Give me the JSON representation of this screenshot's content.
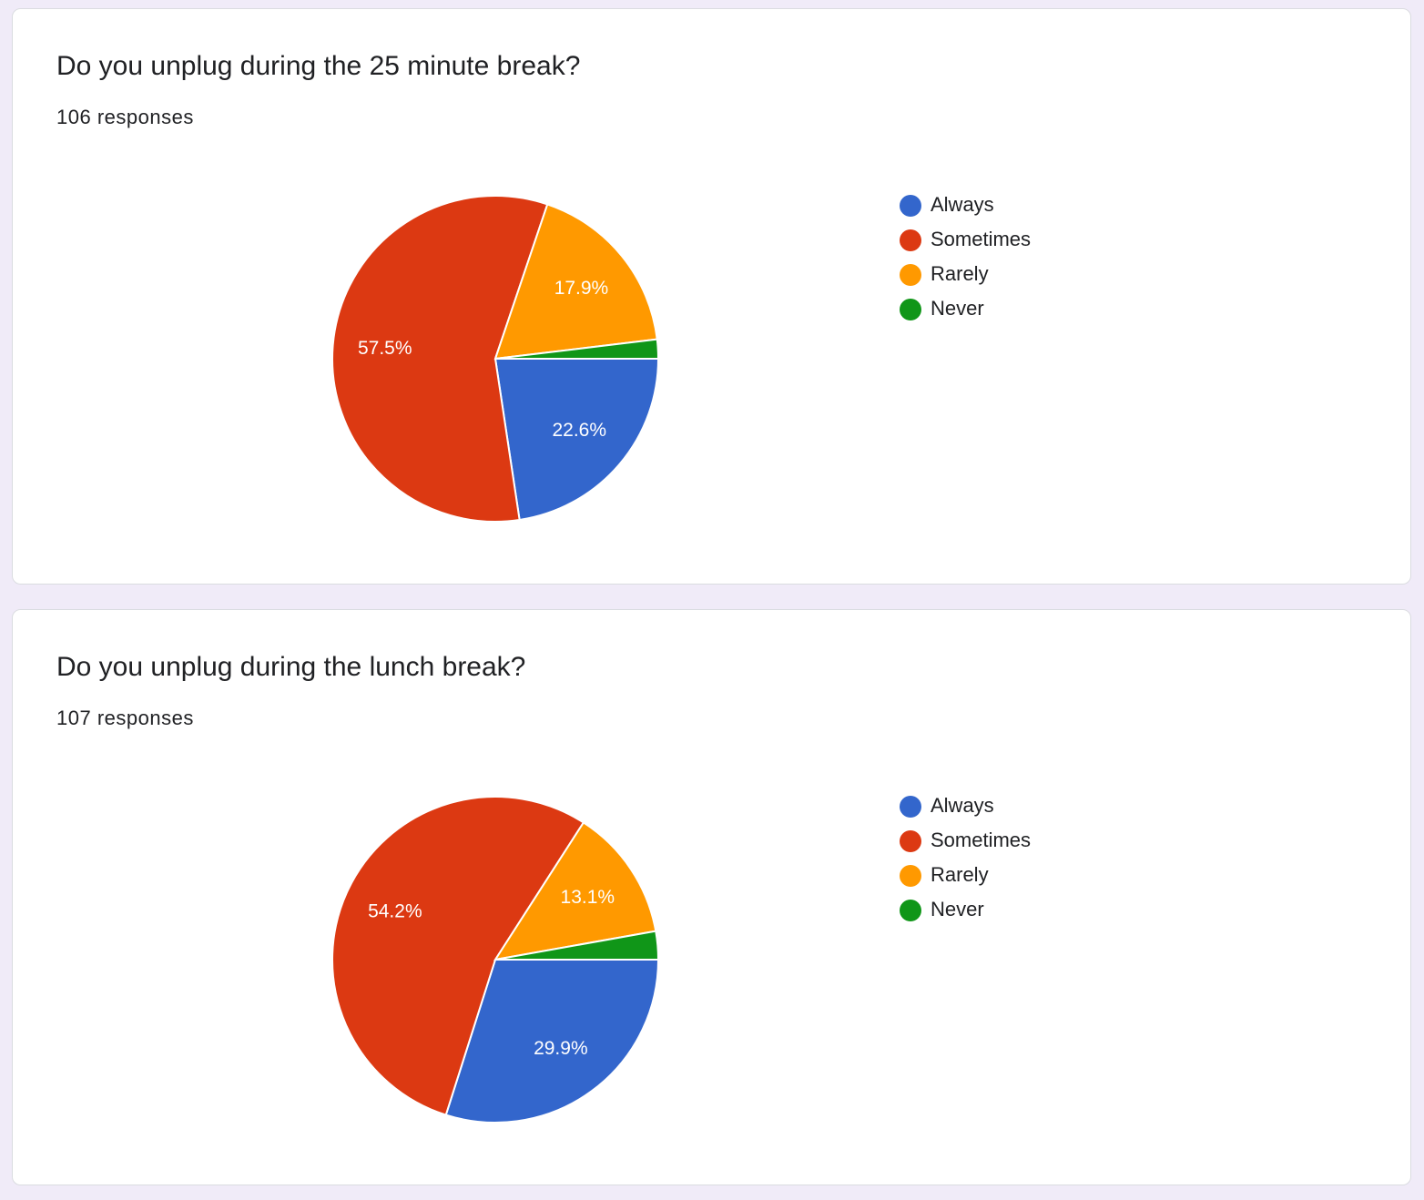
{
  "chart_data": [
    {
      "type": "pie",
      "title": "Do you unplug during the 25 minute break?",
      "subtitle": "106 responses",
      "categories": [
        "Always",
        "Sometimes",
        "Rarely",
        "Never"
      ],
      "values": [
        22.6,
        57.5,
        17.9,
        1.9
      ],
      "value_labels": [
        "22.6%",
        "57.5%",
        "17.9%",
        null
      ],
      "colors": [
        "#3366cc",
        "#dc3912",
        "#ff9900",
        "#109618"
      ],
      "legend": "right"
    },
    {
      "type": "pie",
      "title": "Do you unplug during the lunch break?",
      "subtitle": "107 responses",
      "categories": [
        "Always",
        "Sometimes",
        "Rarely",
        "Never"
      ],
      "values": [
        29.9,
        54.2,
        13.1,
        2.8
      ],
      "value_labels": [
        "29.9%",
        "54.2%",
        "13.1%",
        null
      ],
      "colors": [
        "#3366cc",
        "#dc3912",
        "#ff9900",
        "#109618"
      ],
      "legend": "right"
    }
  ]
}
